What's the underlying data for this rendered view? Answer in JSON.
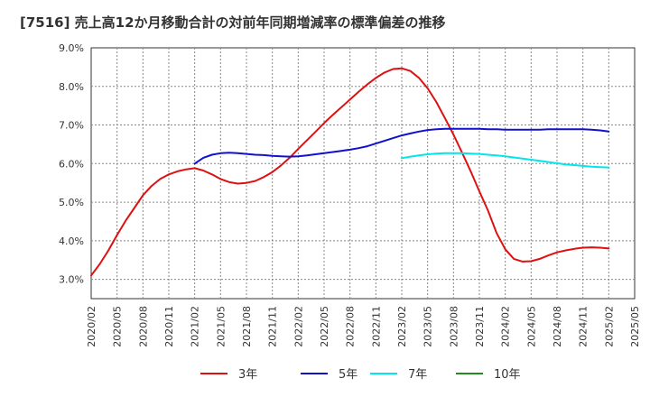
{
  "title": "[7516]  売上高12か月移動合計の対前年同期増減率の標準偏差の推移",
  "chart_data": {
    "type": "line",
    "title": "[7516]  売上高12か月移動合計の対前年同期増減率の標準偏差の推移",
    "xlabel": "",
    "ylabel": "",
    "x_ticks": [
      "2020/02",
      "2020/05",
      "2020/08",
      "2020/11",
      "2021/02",
      "2021/05",
      "2021/08",
      "2021/11",
      "2022/02",
      "2022/05",
      "2022/08",
      "2022/11",
      "2023/02",
      "2023/05",
      "2023/08",
      "2023/11",
      "2024/02",
      "2024/05",
      "2024/08",
      "2024/11",
      "2025/02",
      "2025/05"
    ],
    "y_ticks": [
      "3.0%",
      "4.0%",
      "5.0%",
      "6.0%",
      "7.0%",
      "8.0%",
      "9.0%"
    ],
    "ylim": [
      2.5,
      9.0
    ],
    "grid": true,
    "legend_position": "bottom",
    "series": [
      {
        "name": "3年",
        "color": "#dd1111",
        "x": [
          "2020/02",
          "2020/03",
          "2020/04",
          "2020/05",
          "2020/06",
          "2020/07",
          "2020/08",
          "2020/09",
          "2020/10",
          "2020/11",
          "2020/12",
          "2021/01",
          "2021/02",
          "2021/03",
          "2021/04",
          "2021/05",
          "2021/06",
          "2021/07",
          "2021/08",
          "2021/09",
          "2021/10",
          "2021/11",
          "2021/12",
          "2022/01",
          "2022/02",
          "2022/03",
          "2022/04",
          "2022/05",
          "2022/06",
          "2022/07",
          "2022/08",
          "2022/09",
          "2022/10",
          "2022/11",
          "2022/12",
          "2023/01",
          "2023/02",
          "2023/03",
          "2023/04",
          "2023/05",
          "2023/06",
          "2023/07",
          "2023/08",
          "2023/09",
          "2023/10",
          "2023/11",
          "2023/12",
          "2024/01",
          "2024/02",
          "2024/03",
          "2024/04",
          "2024/05",
          "2024/06",
          "2024/07",
          "2024/08",
          "2024/09",
          "2024/10",
          "2024/11",
          "2024/12",
          "2025/01",
          "2025/02"
        ],
        "values": [
          3.1,
          3.4,
          3.75,
          4.15,
          4.52,
          4.85,
          5.18,
          5.42,
          5.6,
          5.72,
          5.8,
          5.85,
          5.88,
          5.82,
          5.72,
          5.6,
          5.52,
          5.48,
          5.5,
          5.55,
          5.65,
          5.78,
          5.95,
          6.15,
          6.38,
          6.6,
          6.82,
          7.05,
          7.26,
          7.46,
          7.66,
          7.86,
          8.05,
          8.22,
          8.36,
          8.45,
          8.47,
          8.4,
          8.22,
          7.95,
          7.6,
          7.18,
          6.75,
          6.28,
          5.8,
          5.28,
          4.78,
          4.2,
          3.78,
          3.53,
          3.46,
          3.47,
          3.53,
          3.62,
          3.7,
          3.75,
          3.79,
          3.82,
          3.83,
          3.82,
          3.8
        ]
      },
      {
        "name": "5年",
        "color": "#1111cc",
        "x": [
          "2021/02",
          "2021/03",
          "2021/04",
          "2021/05",
          "2021/06",
          "2021/07",
          "2021/08",
          "2021/09",
          "2021/10",
          "2021/11",
          "2021/12",
          "2022/01",
          "2022/02",
          "2022/03",
          "2022/04",
          "2022/05",
          "2022/06",
          "2022/07",
          "2022/08",
          "2022/09",
          "2022/10",
          "2022/11",
          "2022/12",
          "2023/01",
          "2023/02",
          "2023/03",
          "2023/04",
          "2023/05",
          "2023/06",
          "2023/07",
          "2023/08",
          "2023/09",
          "2023/10",
          "2023/11",
          "2023/12",
          "2024/01",
          "2024/02",
          "2024/03",
          "2024/04",
          "2024/05",
          "2024/06",
          "2024/07",
          "2024/08",
          "2024/09",
          "2024/10",
          "2024/11",
          "2024/12",
          "2025/01",
          "2025/02"
        ],
        "values": [
          6.0,
          6.15,
          6.23,
          6.27,
          6.28,
          6.27,
          6.25,
          6.23,
          6.22,
          6.2,
          6.19,
          6.18,
          6.19,
          6.21,
          6.24,
          6.27,
          6.3,
          6.33,
          6.36,
          6.4,
          6.45,
          6.52,
          6.59,
          6.66,
          6.73,
          6.78,
          6.83,
          6.87,
          6.89,
          6.9,
          6.9,
          6.9,
          6.9,
          6.9,
          6.89,
          6.89,
          6.88,
          6.88,
          6.88,
          6.88,
          6.88,
          6.89,
          6.89,
          6.89,
          6.89,
          6.89,
          6.88,
          6.86,
          6.83
        ]
      },
      {
        "name": "7年",
        "color": "#00e5ee",
        "x": [
          "2023/02",
          "2023/03",
          "2023/04",
          "2023/05",
          "2023/06",
          "2023/07",
          "2023/08",
          "2023/09",
          "2023/10",
          "2023/11",
          "2023/12",
          "2024/01",
          "2024/02",
          "2024/03",
          "2024/04",
          "2024/05",
          "2024/06",
          "2024/07",
          "2024/08",
          "2024/09",
          "2024/10",
          "2024/11",
          "2024/12",
          "2025/01",
          "2025/02"
        ],
        "values": [
          6.14,
          6.18,
          6.21,
          6.24,
          6.26,
          6.27,
          6.27,
          6.27,
          6.26,
          6.25,
          6.23,
          6.21,
          6.19,
          6.16,
          6.13,
          6.1,
          6.07,
          6.04,
          6.01,
          5.98,
          5.96,
          5.94,
          5.92,
          5.91,
          5.9
        ]
      },
      {
        "name": "10年",
        "color": "#228b22",
        "x": [],
        "values": []
      }
    ]
  }
}
